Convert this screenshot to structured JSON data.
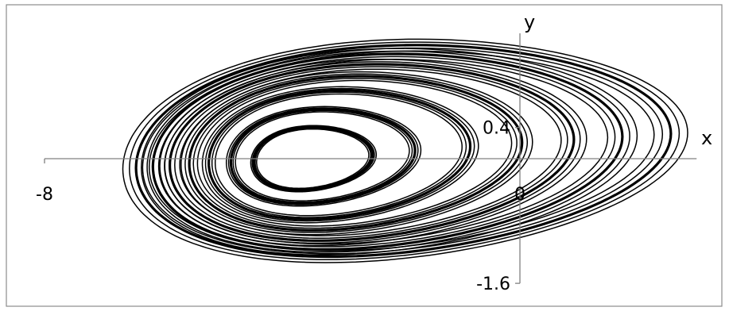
{
  "chart_data": {
    "type": "line",
    "title": "",
    "xlabel": "x",
    "ylabel": "y",
    "xlim": [
      -8,
      3
    ],
    "ylim": [
      -1.6,
      1.6
    ],
    "x_ticks": [
      {
        "value": -8,
        "label": "-8"
      },
      {
        "value": 0,
        "label": "0"
      }
    ],
    "y_ticks": [
      {
        "value": 0.4,
        "label": "0.4"
      },
      {
        "value": -1.6,
        "label": "-1.6"
      }
    ],
    "grid": false,
    "legend": "none",
    "series": [
      {
        "name": "",
        "color": "#000000",
        "description_of_shape": "",
        "loops": [
          {
            "cx": -3.6,
            "cy": 0.0,
            "rx": 1.0,
            "ry": 0.4
          },
          {
            "cx": -3.5,
            "cy": 0.03,
            "rx": 1.55,
            "ry": 0.6
          },
          {
            "cx": -3.3,
            "cy": 0.05,
            "rx": 2.2,
            "ry": 0.82
          },
          {
            "cx": -3.1,
            "cy": 0.07,
            "rx": 2.8,
            "ry": 0.98
          },
          {
            "cx": -2.9,
            "cy": 0.08,
            "rx": 3.4,
            "ry": 1.12
          },
          {
            "cx": -2.7,
            "cy": 0.09,
            "rx": 3.95,
            "ry": 1.24
          },
          {
            "cx": -2.5,
            "cy": 0.1,
            "rx": 4.5,
            "ry": 1.34
          }
        ]
      }
    ],
    "colors": {
      "curve": "#000000",
      "axis": "#808080",
      "frame": "#8c8c8c"
    }
  }
}
